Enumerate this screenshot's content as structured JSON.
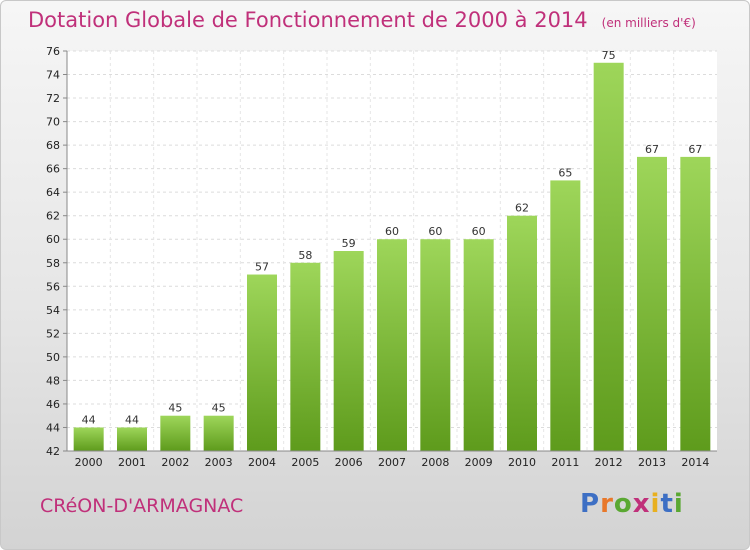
{
  "title": "Dotation Globale de Fonctionnement de 2000 à 2014",
  "unit": "(en milliers d'€)",
  "commune": "CRéON-D'ARMAGNAC",
  "logo": {
    "letters": [
      "P",
      "r",
      "o",
      "x",
      "i",
      "t",
      "i"
    ],
    "colors": [
      "#3d6fc4",
      "#e8782a",
      "#5aa832",
      "#c0307a",
      "#e8b020",
      "#3d6fc4",
      "#5aa832"
    ]
  },
  "colors": {
    "bar_top": "#9ed65a",
    "bar_bottom": "#5e9b1c",
    "accent": "#c0307a"
  },
  "chart_data": {
    "type": "bar",
    "categories": [
      "2000",
      "2001",
      "2002",
      "2003",
      "2004",
      "2005",
      "2006",
      "2007",
      "2008",
      "2009",
      "2010",
      "2011",
      "2012",
      "2013",
      "2014"
    ],
    "values": [
      44,
      44,
      45,
      45,
      57,
      58,
      59,
      60,
      60,
      60,
      62,
      65,
      75,
      67,
      67
    ],
    "data_labels": [
      "44",
      "44",
      "45",
      "45",
      "57",
      "58",
      "59",
      "60",
      "60",
      "60",
      "62",
      "65",
      "75",
      "67",
      "67"
    ],
    "y_ticks": [
      "42",
      "44",
      "46",
      "48",
      "50",
      "52",
      "54",
      "56",
      "58",
      "60",
      "62",
      "64",
      "66",
      "68",
      "70",
      "72",
      "74",
      "76"
    ],
    "ylim": [
      42,
      76
    ],
    "grid": true,
    "title": "Dotation Globale de Fonctionnement de 2000 à 2014",
    "xlabel": "",
    "ylabel": ""
  }
}
